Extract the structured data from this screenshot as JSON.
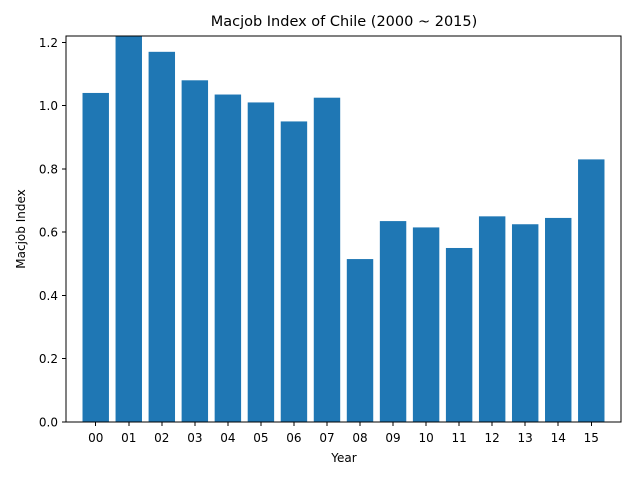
{
  "chart_data": {
    "type": "bar",
    "title": "Macjob Index of Chile (2000 ~ 2015)",
    "xlabel": "Year",
    "ylabel": "Macjob Index",
    "categories": [
      "00",
      "01",
      "02",
      "03",
      "04",
      "05",
      "06",
      "07",
      "08",
      "09",
      "10",
      "11",
      "12",
      "13",
      "14",
      "15"
    ],
    "values": [
      1.04,
      1.22,
      1.17,
      1.08,
      1.035,
      1.01,
      0.95,
      1.025,
      0.515,
      0.635,
      0.615,
      0.55,
      0.65,
      0.625,
      0.645,
      0.83
    ],
    "ylim": [
      0,
      1.22
    ],
    "yticks": [
      "0.0",
      "0.2",
      "0.4",
      "0.6",
      "0.8",
      "1.0",
      "1.2"
    ],
    "bar_color": "#1f77b4",
    "grid": false,
    "legend": "none"
  }
}
